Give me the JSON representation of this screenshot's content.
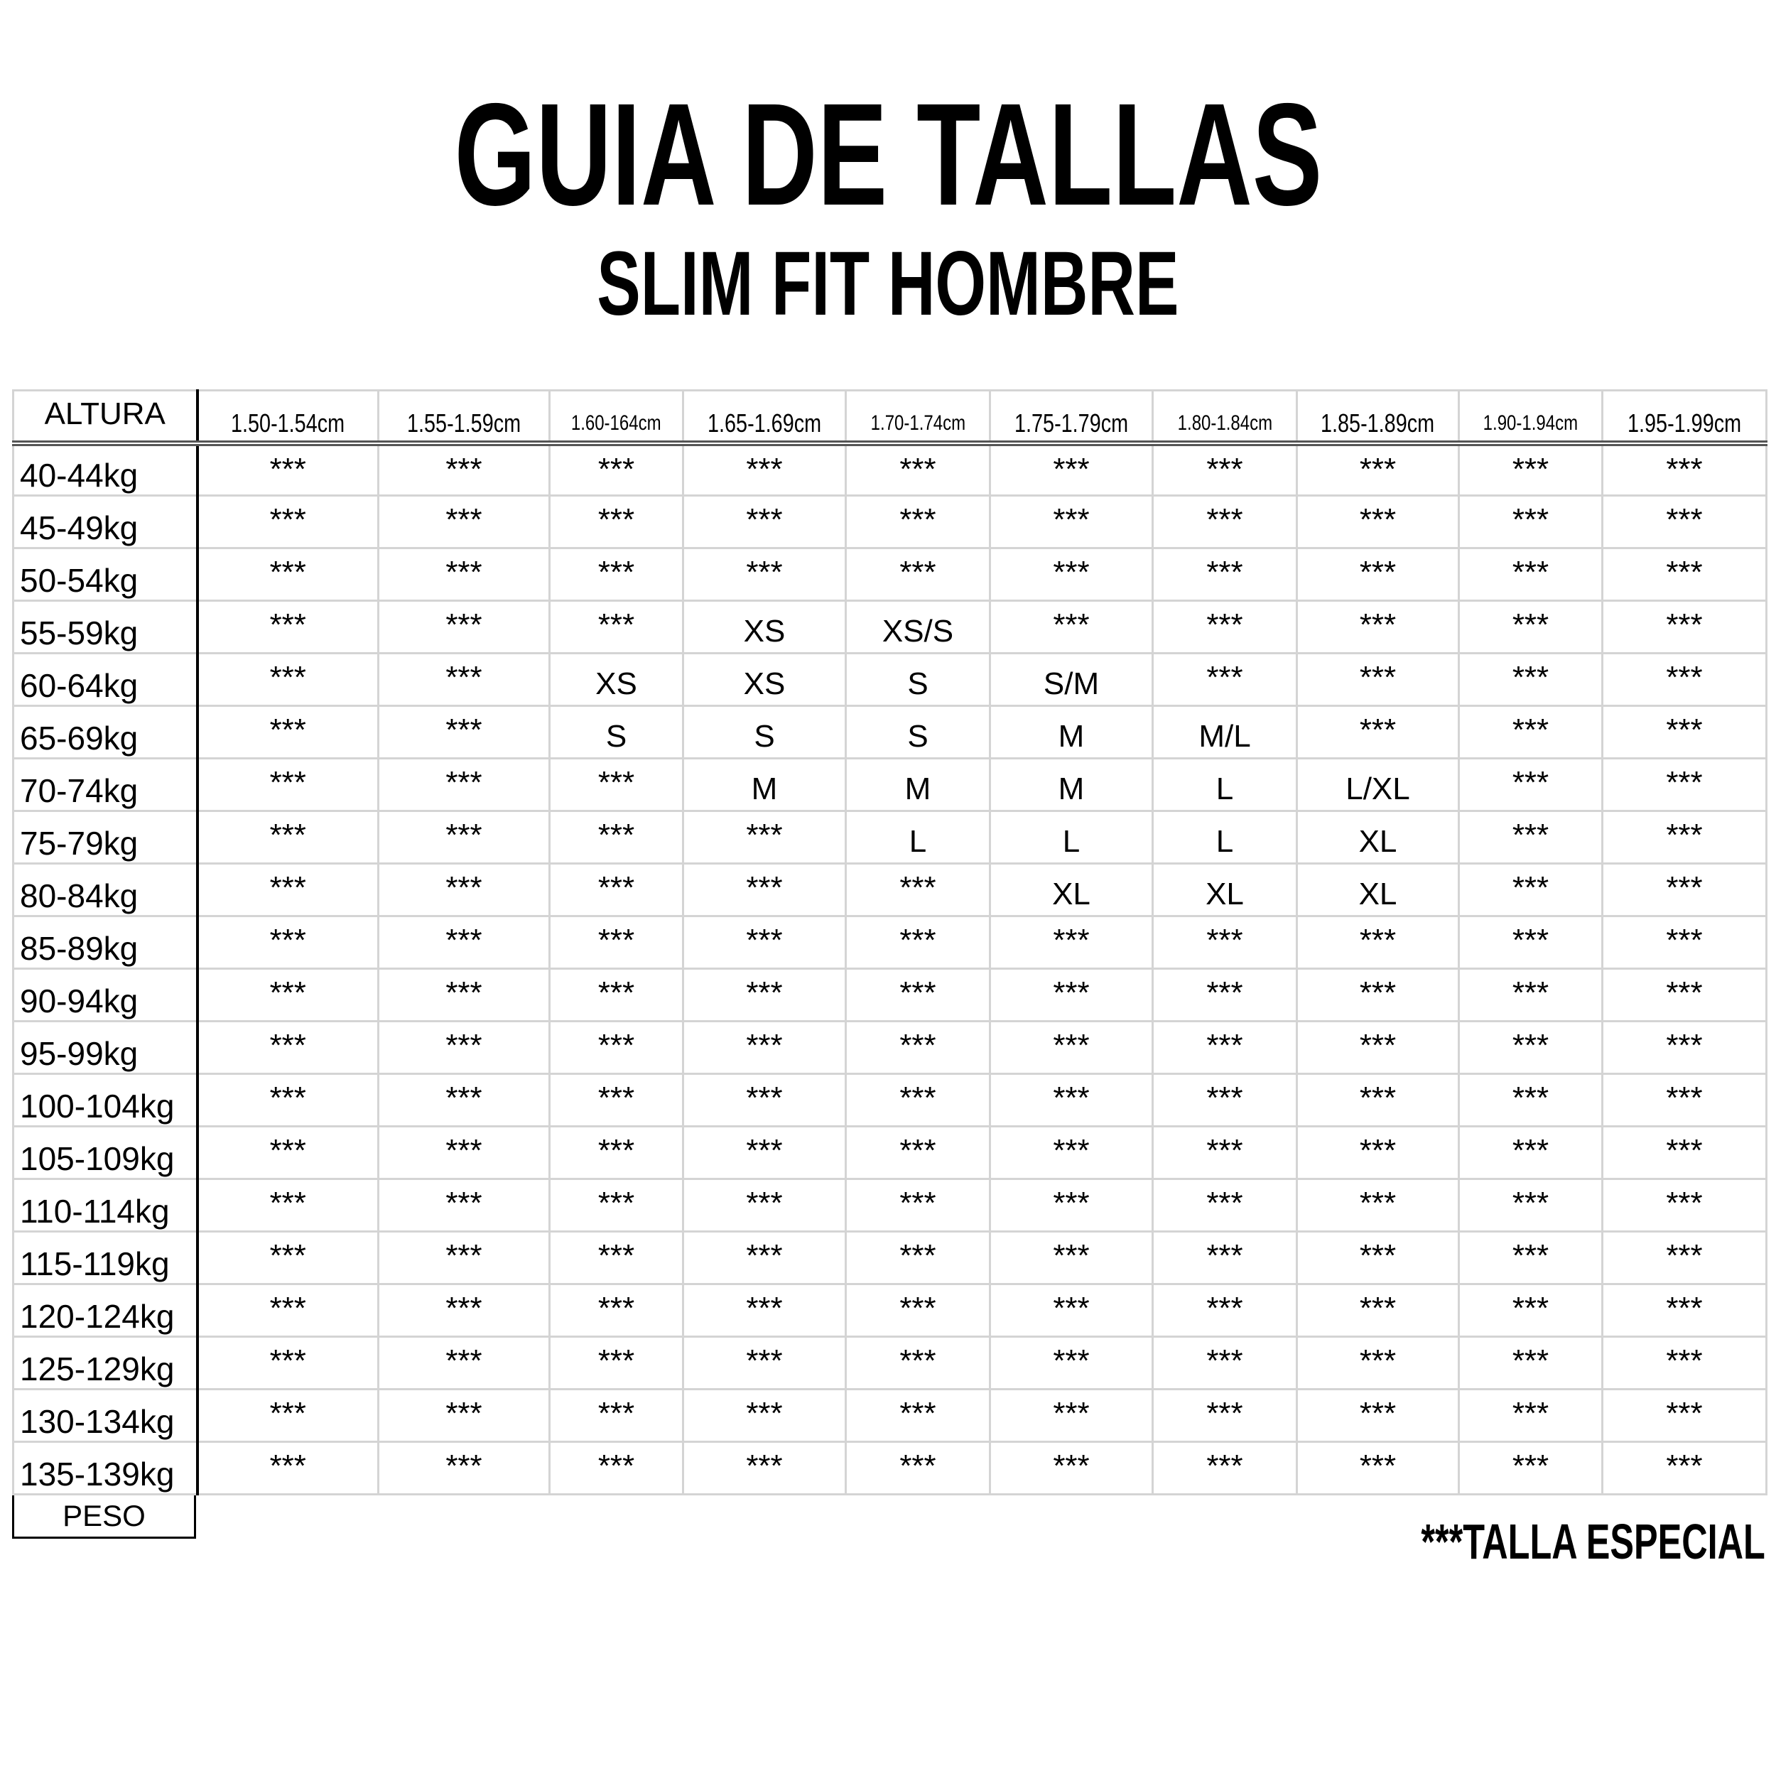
{
  "title": "GUIA DE TALLAS",
  "subtitle": "SLIM FIT HOMBRE",
  "table": {
    "corner_label": "ALTURA",
    "row_axis_label": "PESO",
    "heights": [
      "1.50-1.54cm",
      "1.55-1.59cm",
      "1.60-164cm",
      "1.65-1.69cm",
      "1.70-1.74cm",
      "1.75-1.79cm",
      "1.80-1.84cm",
      "1.85-1.89cm",
      "1.90-1.94cm",
      "1.95-1.99cm"
    ],
    "rows": [
      {
        "weight": "40-44kg",
        "sizes": [
          "***",
          "***",
          "***",
          "***",
          "***",
          "***",
          "***",
          "***",
          "***",
          "***"
        ]
      },
      {
        "weight": "45-49kg",
        "sizes": [
          "***",
          "***",
          "***",
          "***",
          "***",
          "***",
          "***",
          "***",
          "***",
          "***"
        ]
      },
      {
        "weight": "50-54kg",
        "sizes": [
          "***",
          "***",
          "***",
          "***",
          "***",
          "***",
          "***",
          "***",
          "***",
          "***"
        ]
      },
      {
        "weight": "55-59kg",
        "sizes": [
          "***",
          "***",
          "***",
          "XS",
          "XS/S",
          "***",
          "***",
          "***",
          "***",
          "***"
        ]
      },
      {
        "weight": "60-64kg",
        "sizes": [
          "***",
          "***",
          "XS",
          "XS",
          "S",
          "S/M",
          "***",
          "***",
          "***",
          "***"
        ]
      },
      {
        "weight": "65-69kg",
        "sizes": [
          "***",
          "***",
          "S",
          "S",
          "S",
          "M",
          "M/L",
          "***",
          "***",
          "***"
        ]
      },
      {
        "weight": "70-74kg",
        "sizes": [
          "***",
          "***",
          "***",
          "M",
          "M",
          "M",
          "L",
          "L/XL",
          "***",
          "***"
        ]
      },
      {
        "weight": "75-79kg",
        "sizes": [
          "***",
          "***",
          "***",
          "***",
          "L",
          "L",
          "L",
          "XL",
          "***",
          "***"
        ]
      },
      {
        "weight": "80-84kg",
        "sizes": [
          "***",
          "***",
          "***",
          "***",
          "***",
          "XL",
          "XL",
          "XL",
          "***",
          "***"
        ]
      },
      {
        "weight": "85-89kg",
        "sizes": [
          "***",
          "***",
          "***",
          "***",
          "***",
          "***",
          "***",
          "***",
          "***",
          "***"
        ]
      },
      {
        "weight": "90-94kg",
        "sizes": [
          "***",
          "***",
          "***",
          "***",
          "***",
          "***",
          "***",
          "***",
          "***",
          "***"
        ]
      },
      {
        "weight": "95-99kg",
        "sizes": [
          "***",
          "***",
          "***",
          "***",
          "***",
          "***",
          "***",
          "***",
          "***",
          "***"
        ]
      },
      {
        "weight": "100-104kg",
        "sizes": [
          "***",
          "***",
          "***",
          "***",
          "***",
          "***",
          "***",
          "***",
          "***",
          "***"
        ]
      },
      {
        "weight": "105-109kg",
        "sizes": [
          "***",
          "***",
          "***",
          "***",
          "***",
          "***",
          "***",
          "***",
          "***",
          "***"
        ]
      },
      {
        "weight": "110-114kg",
        "sizes": [
          "***",
          "***",
          "***",
          "***",
          "***",
          "***",
          "***",
          "***",
          "***",
          "***"
        ]
      },
      {
        "weight": "115-119kg",
        "sizes": [
          "***",
          "***",
          "***",
          "***",
          "***",
          "***",
          "***",
          "***",
          "***",
          "***"
        ]
      },
      {
        "weight": "120-124kg",
        "sizes": [
          "***",
          "***",
          "***",
          "***",
          "***",
          "***",
          "***",
          "***",
          "***",
          "***"
        ]
      },
      {
        "weight": "125-129kg",
        "sizes": [
          "***",
          "***",
          "***",
          "***",
          "***",
          "***",
          "***",
          "***",
          "***",
          "***"
        ]
      },
      {
        "weight": "130-134kg",
        "sizes": [
          "***",
          "***",
          "***",
          "***",
          "***",
          "***",
          "***",
          "***",
          "***",
          "***"
        ]
      },
      {
        "weight": "135-139kg",
        "sizes": [
          "***",
          "***",
          "***",
          "***",
          "***",
          "***",
          "***",
          "***",
          "***",
          "***"
        ]
      }
    ]
  },
  "footnote": "***TALLA ESPECIAL"
}
